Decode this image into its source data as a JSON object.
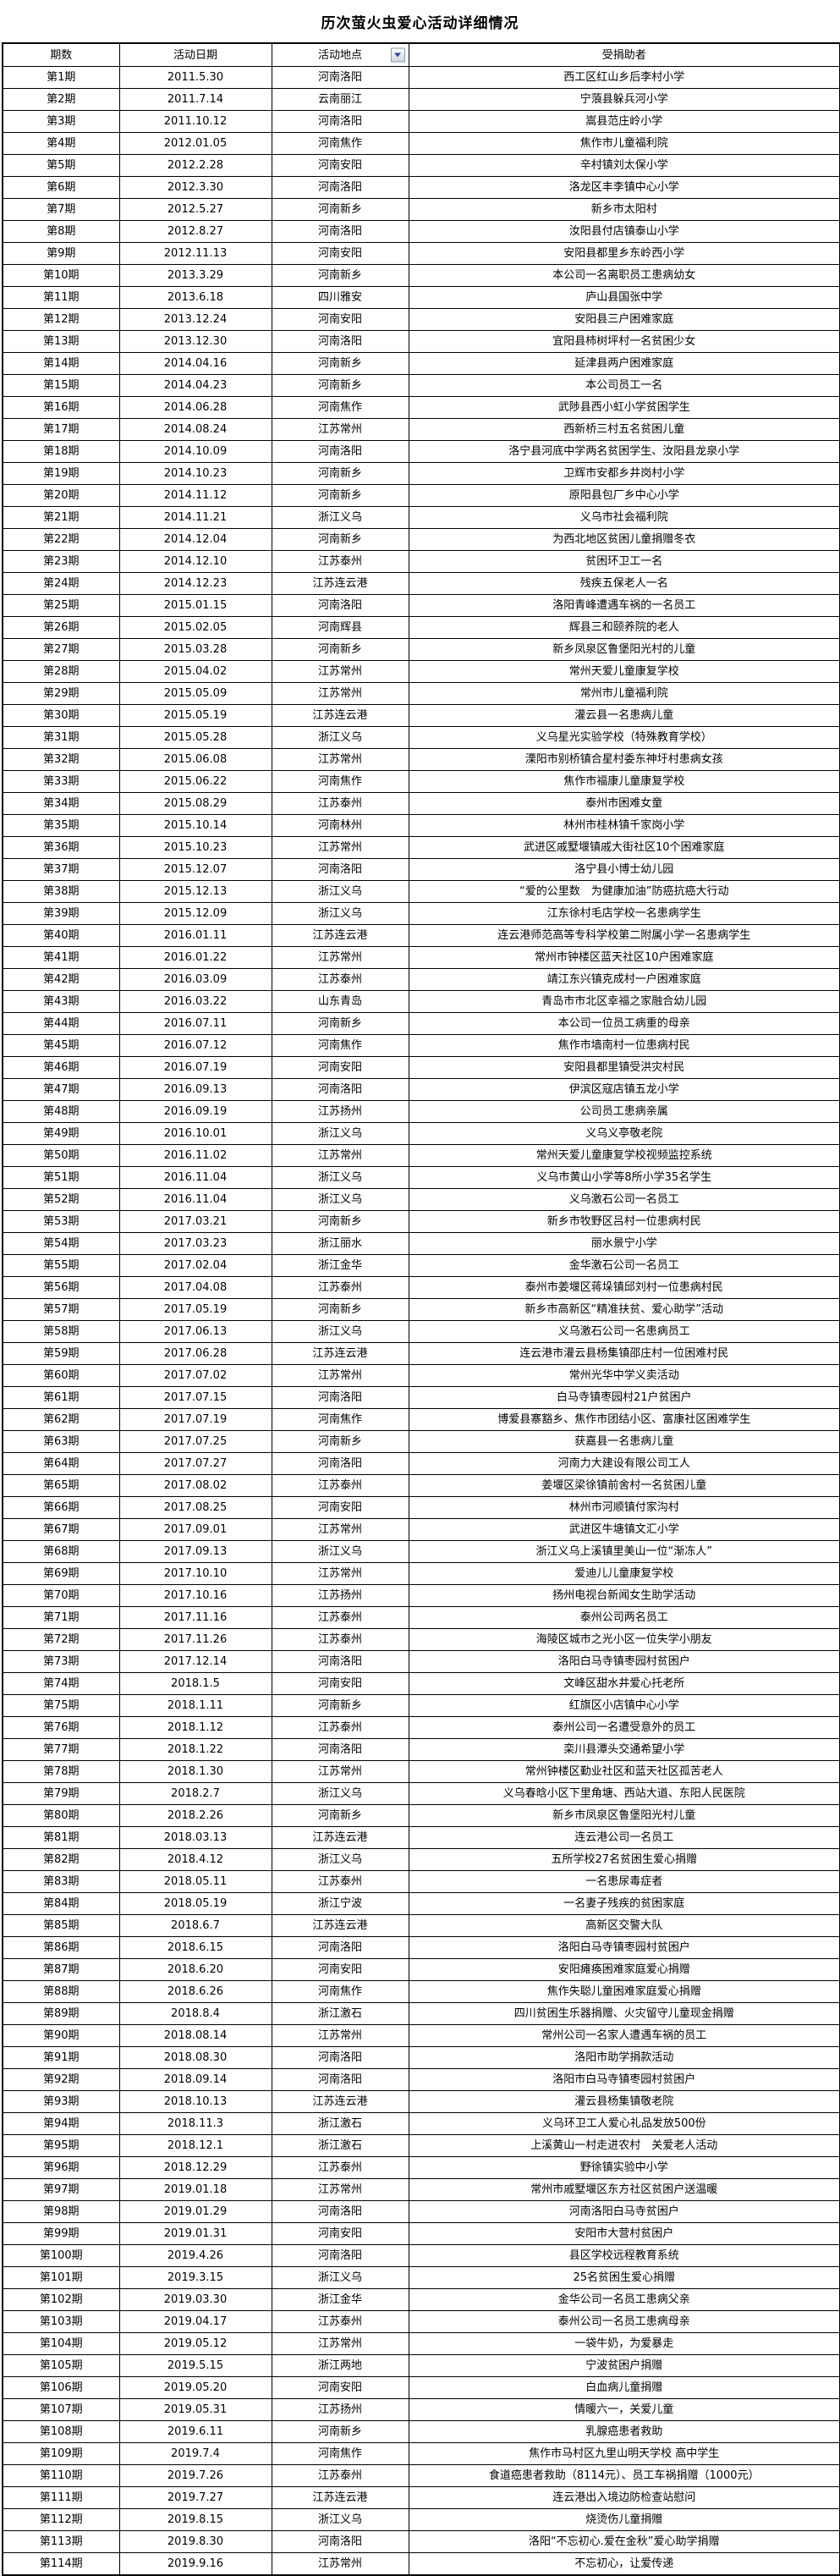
{
  "title": "历次萤火虫爱心活动详细情况",
  "colors": {
    "border": "#000000",
    "background": "#ffffff",
    "text": "#000000",
    "filter_button_border": "#7f9db9",
    "filter_arrow": "#2c47a5"
  },
  "table": {
    "headers": [
      "期数",
      "活动日期",
      "活动地点",
      "受捐助者"
    ],
    "filter_dropdown_column": "活动地点",
    "rows": [
      [
        "第1期",
        "2011.5.30",
        "河南洛阳",
        "西工区红山乡后李村小学"
      ],
      [
        "第2期",
        "2011.7.14",
        "云南丽江",
        "宁蒗县躲兵河小学"
      ],
      [
        "第3期",
        "2011.10.12",
        "河南洛阳",
        "嵩县范庄岭小学"
      ],
      [
        "第4期",
        "2012.01.05",
        "河南焦作",
        "焦作市儿童福利院"
      ],
      [
        "第5期",
        "2012.2.28",
        "河南安阳",
        "辛村镇刘太保小学"
      ],
      [
        "第6期",
        "2012.3.30",
        "河南洛阳",
        "洛龙区丰李镇中心小学"
      ],
      [
        "第7期",
        "2012.5.27",
        "河南新乡",
        "新乡市太阳村"
      ],
      [
        "第8期",
        "2012.8.27",
        "河南洛阳",
        "汝阳县付店镇泰山小学"
      ],
      [
        "第9期",
        "2012.11.13",
        "河南安阳",
        "安阳县都里乡东岭西小学"
      ],
      [
        "第10期",
        "2013.3.29",
        "河南新乡",
        "本公司一名离职员工患病幼女"
      ],
      [
        "第11期",
        "2013.6.18",
        "四川雅安",
        "庐山县国张中学"
      ],
      [
        "第12期",
        "2013.12.24",
        "河南安阳",
        "安阳县三户困难家庭"
      ],
      [
        "第13期",
        "2013.12.30",
        "河南洛阳",
        "宜阳县柿树坪村一名贫困少女"
      ],
      [
        "第14期",
        "2014.04.16",
        "河南新乡",
        "延津县两户困难家庭"
      ],
      [
        "第15期",
        "2014.04.23",
        "河南新乡",
        "本公司员工一名"
      ],
      [
        "第16期",
        "2014.06.28",
        "河南焦作",
        "武陟县西小虹小学贫困学生"
      ],
      [
        "第17期",
        "2014.08.24",
        "江苏常州",
        "西新桥三村五名贫困儿童"
      ],
      [
        "第18期",
        "2014.10.09",
        "河南洛阳",
        "洛宁县河底中学两名贫困学生、汝阳县龙泉小学"
      ],
      [
        "第19期",
        "2014.10.23",
        "河南新乡",
        "卫辉市安都乡井岗村小学"
      ],
      [
        "第20期",
        "2014.11.12",
        "河南新乡",
        "原阳县包厂乡中心小学"
      ],
      [
        "第21期",
        "2014.11.21",
        "浙江义乌",
        "义乌市社会福利院"
      ],
      [
        "第22期",
        "2014.12.04",
        "河南新乡",
        "为西北地区贫困儿童捐赠冬衣"
      ],
      [
        "第23期",
        "2014.12.10",
        "江苏泰州",
        "贫困环卫工一名"
      ],
      [
        "第24期",
        "2014.12.23",
        "江苏连云港",
        "残疾五保老人一名"
      ],
      [
        "第25期",
        "2015.01.15",
        "河南洛阳",
        "洛阳青峰遭遇车祸的一名员工"
      ],
      [
        "第26期",
        "2015.02.05",
        "河南辉县",
        "辉县三和颐养院的老人"
      ],
      [
        "第27期",
        "2015.03.28",
        "河南新乡",
        "新乡凤泉区鲁堡阳光村的儿童"
      ],
      [
        "第28期",
        "2015.04.02",
        "江苏常州",
        "常州天爱儿童康复学校"
      ],
      [
        "第29期",
        "2015.05.09",
        "江苏常州",
        "常州市儿童福利院"
      ],
      [
        "第30期",
        "2015.05.19",
        "江苏连云港",
        "灌云县一名患病儿童"
      ],
      [
        "第31期",
        "2015.05.28",
        "浙江义乌",
        "义乌星光实验学校（特殊教育学校）"
      ],
      [
        "第32期",
        "2015.06.08",
        "江苏常州",
        "溧阳市别桥镇合星村委东神圩村患病女孩"
      ],
      [
        "第33期",
        "2015.06.22",
        "河南焦作",
        "焦作市福康儿童康复学校"
      ],
      [
        "第34期",
        "2015.08.29",
        "江苏泰州",
        "泰州市困难女童"
      ],
      [
        "第35期",
        "2015.10.14",
        "河南林州",
        "林州市桂林镇千家岗小学"
      ],
      [
        "第36期",
        "2015.10.23",
        "江苏常州",
        "武进区戚墅堰镇戚大街社区10个困难家庭"
      ],
      [
        "第37期",
        "2015.12.07",
        "河南洛阳",
        "洛宁县小博士幼儿园"
      ],
      [
        "第38期",
        "2015.12.13",
        "浙江义乌",
        "“爱的公里数　为健康加油”防癌抗癌大行动"
      ],
      [
        "第39期",
        "2015.12.09",
        "浙江义乌",
        "江东徐村毛店学校一名患病学生"
      ],
      [
        "第40期",
        "2016.01.11",
        "江苏连云港",
        "连云港师范高等专科学校第二附属小学一名患病学生"
      ],
      [
        "第41期",
        "2016.01.22",
        "江苏常州",
        "常州市钟楼区蓝天社区10户困难家庭"
      ],
      [
        "第42期",
        "2016.03.09",
        "江苏泰州",
        "靖江东兴镇克成村一户困难家庭"
      ],
      [
        "第43期",
        "2016.03.22",
        "山东青岛",
        "青岛市市北区幸福之家融合幼儿园"
      ],
      [
        "第44期",
        "2016.07.11",
        "河南新乡",
        "本公司一位员工病重的母亲"
      ],
      [
        "第45期",
        "2016.07.12",
        "河南焦作",
        "焦作市墙南村一位患病村民"
      ],
      [
        "第46期",
        "2016.07.19",
        "河南安阳",
        "安阳县都里镇受洪灾村民"
      ],
      [
        "第47期",
        "2016.09.13",
        "河南洛阳",
        "伊滨区寇店镇五龙小学"
      ],
      [
        "第48期",
        "2016.09.19",
        "江苏扬州",
        "公司员工患病亲属"
      ],
      [
        "第49期",
        "2016.10.01",
        "浙江义乌",
        "义乌义亭敬老院"
      ],
      [
        "第50期",
        "2016.11.02",
        "江苏常州",
        "常州天爱儿童康复学校视频监控系统"
      ],
      [
        "第51期",
        "2016.11.04",
        "浙江义乌",
        "义乌市黄山小学等8所小学35名学生"
      ],
      [
        "第52期",
        "2016.11.04",
        "浙江义乌",
        "义乌激石公司一名员工"
      ],
      [
        "第53期",
        "2017.03.21",
        "河南新乡",
        "新乡市牧野区吕村一位患病村民"
      ],
      [
        "第54期",
        "2017.03.23",
        "浙江丽水",
        "丽水景宁小学"
      ],
      [
        "第55期",
        "2017.02.04",
        "浙江金华",
        "金华激石公司一名员工"
      ],
      [
        "第56期",
        "2017.04.08",
        "江苏泰州",
        "泰州市姜堰区蒋垛镇邱刘村一位患病村民"
      ],
      [
        "第57期",
        "2017.05.19",
        "河南新乡",
        "新乡市高新区“精准扶贫、爱心助学”活动"
      ],
      [
        "第58期",
        "2017.06.13",
        "浙江义乌",
        "义乌激石公司一名患病员工"
      ],
      [
        "第59期",
        "2017.06.28",
        "江苏连云港",
        "连云港市灌云县杨集镇邵庄村一位困难村民"
      ],
      [
        "第60期",
        "2017.07.02",
        "江苏常州",
        "常州光华中学义卖活动"
      ],
      [
        "第61期",
        "2017.07.15",
        "河南洛阳",
        "白马寺镇枣园村21户贫困户"
      ],
      [
        "第62期",
        "2017.07.19",
        "河南焦作",
        "博爱县寨豁乡、焦作市团结小区、富康社区困难学生"
      ],
      [
        "第63期",
        "2017.07.25",
        "河南新乡",
        "获嘉县一名患病儿童"
      ],
      [
        "第64期",
        "2017.07.27",
        "河南洛阳",
        "河南力大建设有限公司工人"
      ],
      [
        "第65期",
        "2017.08.02",
        "江苏泰州",
        "姜堰区梁徐镇前舍村一名贫困儿童"
      ],
      [
        "第66期",
        "2017.08.25",
        "河南安阳",
        "林州市河顺镇付家沟村"
      ],
      [
        "第67期",
        "2017.09.01",
        "江苏常州",
        "武进区牛塘镇文汇小学"
      ],
      [
        "第68期",
        "2017.09.13",
        "浙江义乌",
        "浙江义乌上溪镇里美山一位“渐冻人”"
      ],
      [
        "第69期",
        "2017.10.10",
        "江苏常州",
        "爱迪儿儿童康复学校"
      ],
      [
        "第70期",
        "2017.10.16",
        "江苏扬州",
        "扬州电视台新闻女生助学活动"
      ],
      [
        "第71期",
        "2017.11.16",
        "江苏泰州",
        "泰州公司两名员工"
      ],
      [
        "第72期",
        "2017.11.26",
        "江苏泰州",
        "海陵区城市之光小区一位失学小朋友"
      ],
      [
        "第73期",
        "2017.12.14",
        "河南洛阳",
        "洛阳白马寺镇枣园村贫困户"
      ],
      [
        "第74期",
        "2018.1.5",
        "河南安阳",
        "文峰区甜水井爱心托老所"
      ],
      [
        "第75期",
        "2018.1.11",
        "河南新乡",
        "红旗区小店镇中心小学"
      ],
      [
        "第76期",
        "2018.1.12",
        "江苏泰州",
        "泰州公司一名遭受意外的员工"
      ],
      [
        "第77期",
        "2018.1.22",
        "河南洛阳",
        "栾川县潭头交通希望小学"
      ],
      [
        "第78期",
        "2018.1.30",
        "江苏常州",
        "常州钟楼区勤业社区和蓝天社区孤苦老人"
      ],
      [
        "第79期",
        "2018.2.7",
        "浙江义乌",
        "义乌春晗小区下里角塘、西站大道、东阳人民医院"
      ],
      [
        "第80期",
        "2018.2.26",
        "河南新乡",
        "新乡市凤泉区鲁堡阳光村儿童"
      ],
      [
        "第81期",
        "2018.03.13",
        "江苏连云港",
        "连云港公司一名员工"
      ],
      [
        "第82期",
        "2018.4.12",
        "浙江义乌",
        "五所学校27名贫困生爱心捐赠"
      ],
      [
        "第83期",
        "2018.05.11",
        "江苏泰州",
        "一名患尿毒症者"
      ],
      [
        "第84期",
        "2018.05.19",
        "浙江宁波",
        "一名妻子残疾的贫困家庭"
      ],
      [
        "第85期",
        "2018.6.7",
        "江苏连云港",
        "高新区交警大队"
      ],
      [
        "第86期",
        "2018.6.15",
        "河南洛阳",
        "洛阳白马寺镇枣园村贫困户"
      ],
      [
        "第87期",
        "2018.6.20",
        "河南安阳",
        "安阳瘫痪困难家庭爱心捐赠"
      ],
      [
        "第88期",
        "2018.6.26",
        "河南焦作",
        "焦作失聪儿童困难家庭爱心捐赠"
      ],
      [
        "第89期",
        "2018.8.4",
        "浙江激石",
        "四川贫困生乐器捐赠、火灾留守儿童现金捐赠"
      ],
      [
        "第90期",
        "2018.08.14",
        "江苏常州",
        "常州公司一名家人遭遇车祸的员工"
      ],
      [
        "第91期",
        "2018.08.30",
        "河南洛阳",
        "洛阳市助学捐款活动"
      ],
      [
        "第92期",
        "2018.09.14",
        "河南洛阳",
        "洛阳市白马寺镇枣园村贫困户"
      ],
      [
        "第93期",
        "2018.10.13",
        "江苏连云港",
        "灌云县杨集镇敬老院"
      ],
      [
        "第94期",
        "2018.11.3",
        "浙江激石",
        "义乌环卫工人爱心礼品发放500份"
      ],
      [
        "第95期",
        "2018.12.1",
        "浙江激石",
        "上溪黄山一村走进农村　关爱老人活动"
      ],
      [
        "第96期",
        "2018.12.29",
        "江苏泰州",
        "野徐镇实验中小学"
      ],
      [
        "第97期",
        "2019.01.18",
        "江苏常州",
        "常州市戚墅堰区东方社区贫困户送温暖"
      ],
      [
        "第98期",
        "2019.01.29",
        "河南洛阳",
        "河南洛阳白马寺贫困户"
      ],
      [
        "第99期",
        "2019.01.31",
        "河南安阳",
        "安阳市大营村贫困户"
      ],
      [
        "第100期",
        "2019.4.26",
        "河南洛阳",
        "县区学校远程教育系统"
      ],
      [
        "第101期",
        "2019.3.15",
        "浙江义乌",
        "25名贫困生爱心捐赠"
      ],
      [
        "第102期",
        "2019.03.30",
        "浙江金华",
        "金华公司一名员工患病父亲"
      ],
      [
        "第103期",
        "2019.04.17",
        "江苏泰州",
        "泰州公司一名员工患病母亲"
      ],
      [
        "第104期",
        "2019.05.12",
        "江苏常州",
        "一袋牛奶，为爱暴走"
      ],
      [
        "第105期",
        "2019.5.15",
        "浙江两地",
        "宁波贫困户捐赠"
      ],
      [
        "第106期",
        "2019.05.20",
        "河南安阳",
        "白血病儿童捐赠"
      ],
      [
        "第107期",
        "2019.05.31",
        "江苏扬州",
        "情暖六一，关爱儿童"
      ],
      [
        "第108期",
        "2019.6.11",
        "河南新乡",
        "乳腺癌患者救助"
      ],
      [
        "第109期",
        "2019.7.4",
        "河南焦作",
        "焦作市马村区九里山明天学校 高中学生"
      ],
      [
        "第110期",
        "2019.7.26",
        "江苏泰州",
        "食道癌患者救助（8114元）、员工车祸捐赠（1000元）"
      ],
      [
        "第111期",
        "2019.7.27",
        "江苏连云港",
        "连云港出入境边防检查站慰问"
      ],
      [
        "第112期",
        "2019.8.15",
        "浙江义乌",
        "烧烫伤儿童捐赠"
      ],
      [
        "第113期",
        "2019.8.30",
        "河南洛阳",
        "洛阳“不忘初心.爱在金秋”爱心助学捐赠"
      ],
      [
        "第114期",
        "2019.9.16",
        "江苏常州",
        "不忘初心，让爱传递"
      ]
    ]
  }
}
